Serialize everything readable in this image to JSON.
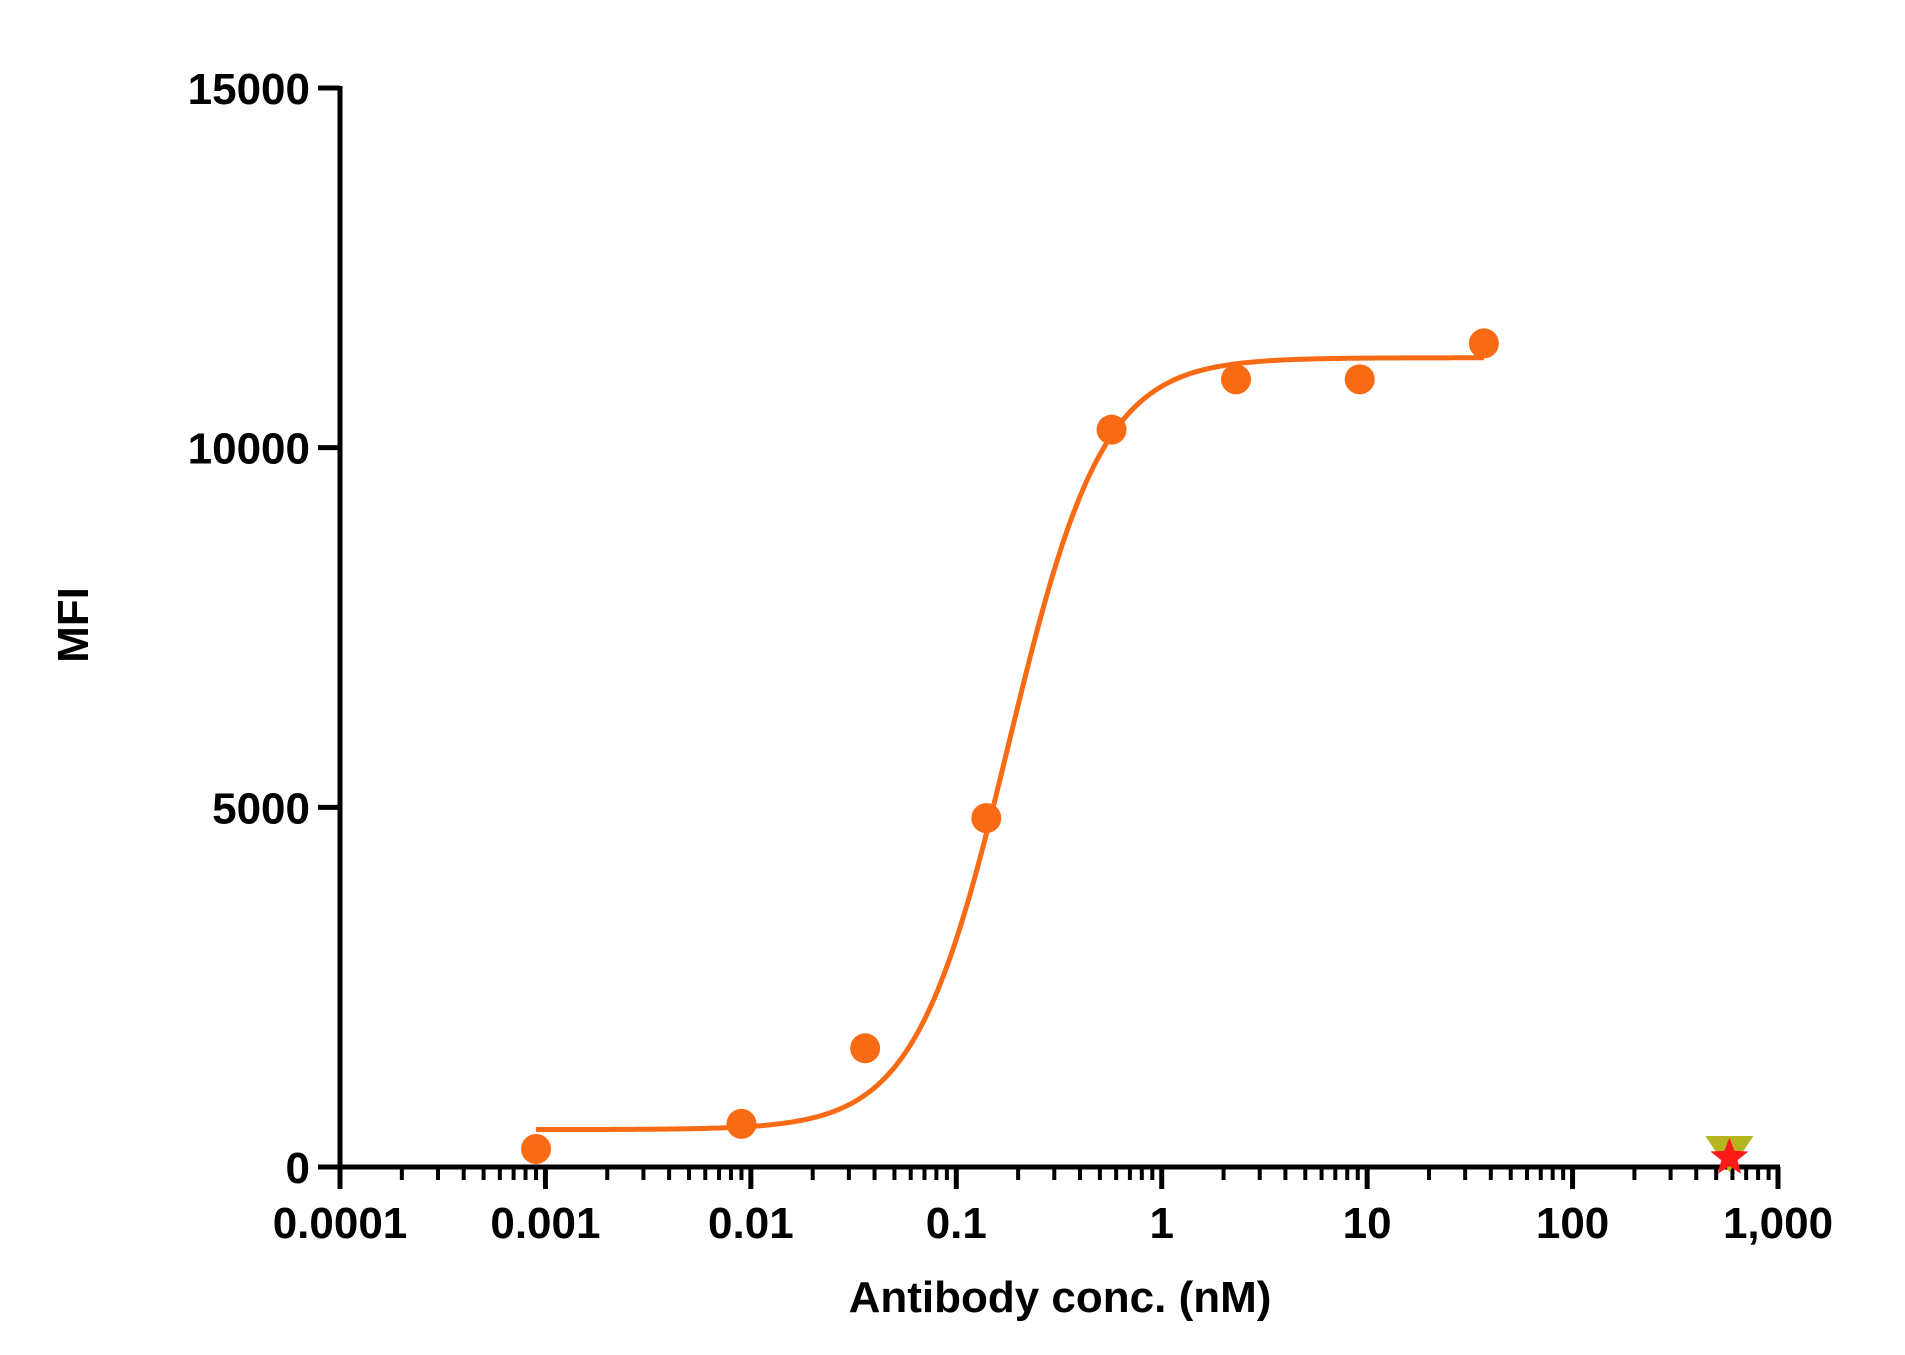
{
  "chart_data": {
    "type": "scatter",
    "title": "",
    "xlabel": "Antibody conc. (nM)",
    "ylabel": "MFI",
    "x_scale": "log",
    "xlim": [
      0.0001,
      1000
    ],
    "ylim": [
      0,
      15000
    ],
    "x_ticks": [
      {
        "value": 0.0001,
        "label": "0.0001"
      },
      {
        "value": 0.001,
        "label": "0.001"
      },
      {
        "value": 0.01,
        "label": "0.01"
      },
      {
        "value": 0.1,
        "label": "0.1"
      },
      {
        "value": 1,
        "label": "1"
      },
      {
        "value": 10,
        "label": "10"
      },
      {
        "value": 100,
        "label": "100"
      },
      {
        "value": 1000,
        "label": "1,000"
      }
    ],
    "y_ticks": [
      {
        "value": 0,
        "label": "0"
      },
      {
        "value": 5000,
        "label": "5000"
      },
      {
        "value": 10000,
        "label": "10000"
      },
      {
        "value": 15000,
        "label": "15000"
      }
    ],
    "grid": false,
    "legend": "none",
    "series": [
      {
        "color": "#F96A14",
        "marker": "circle",
        "x": [
          0.0009,
          0.009,
          0.036,
          0.14,
          0.57,
          2.3,
          9.2,
          37
        ],
        "y": [
          250,
          600,
          1650,
          4850,
          10250,
          10950,
          10950,
          11450
        ]
      },
      {
        "color": "#B5B520",
        "marker": "triangle-down",
        "x": [
          580
        ],
        "y": [
          180
        ]
      },
      {
        "color": "#FF1A1A",
        "marker": "star",
        "x": [
          580
        ],
        "y": [
          130
        ]
      }
    ],
    "fit": {
      "model": "4PL",
      "color": "#F96A14",
      "bottom": 520,
      "top": 11250,
      "ec50": 0.18,
      "hill": 1.9,
      "x_range": [
        0.0009,
        37
      ]
    }
  }
}
